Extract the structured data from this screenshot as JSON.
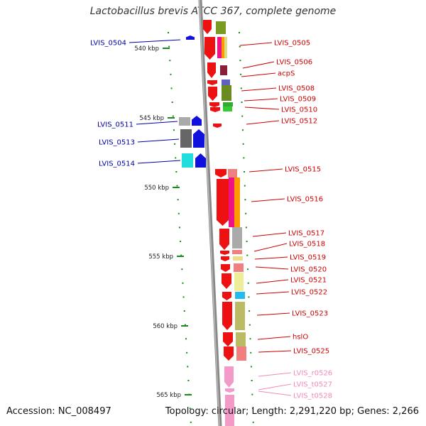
{
  "header": {
    "title": "Lactobacillus brevis ATCC 367, complete genome"
  },
  "footer": {
    "accession": "Accession: NC_008497",
    "summary": "Topology: circular; Length: 2,291,220 bp; Genes: 2,266"
  },
  "ticks": [
    "540 kbp",
    "545 kbp",
    "550 kbp",
    "555 kbp",
    "560 kbp",
    "565 kbp"
  ],
  "colors": {
    "forward_labels": "#cc0000",
    "reverse_labels": "#0000aa",
    "rna_labels": "#f08ab8"
  },
  "genes_reverse": [
    "LVIS_0504",
    "LVIS_0511",
    "LVIS_0513",
    "LVIS_0514"
  ],
  "genes_forward": [
    "LVIS_0505",
    "LVIS_0506",
    "acpS",
    "LVIS_0508",
    "LVIS_0509",
    "LVIS_0510",
    "LVIS_0512",
    "LVIS_0515",
    "LVIS_0516",
    "LVIS_0517",
    "LVIS_0518",
    "LVIS_0519",
    "LVIS_0520",
    "LVIS_0521",
    "LVIS_0522",
    "LVIS_0523",
    "hslO",
    "LVIS_0525"
  ],
  "genes_rna": [
    "LVIS_r0526",
    "LVIS_t0527",
    "LVIS_t0528"
  ]
}
